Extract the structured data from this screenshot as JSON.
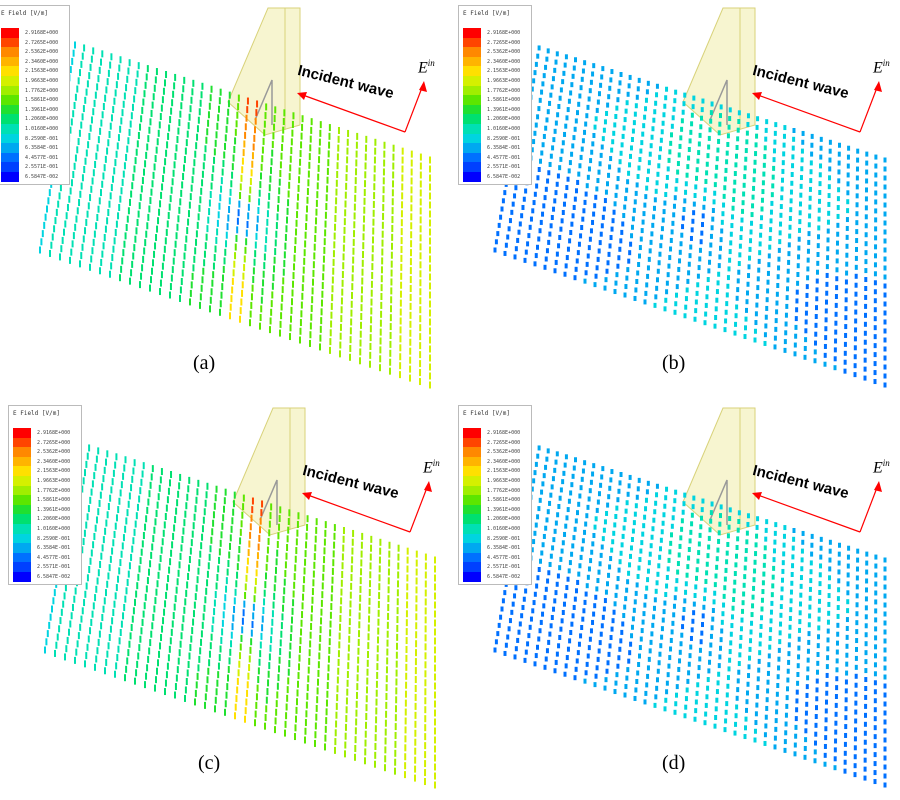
{
  "legend": {
    "title": "E Field [V/m]",
    "values": [
      "2.9168E+000",
      "2.7265E+000",
      "2.5362E+000",
      "2.3460E+000",
      "2.1563E+000",
      "1.9663E+000",
      "1.7762E+000",
      "1.5861E+000",
      "1.3961E+000",
      "1.2060E+000",
      "1.0160E+000",
      "8.2590E-001",
      "6.3584E-001",
      "4.4577E-001",
      "2.5571E-001",
      "6.5847E-002"
    ],
    "colors": [
      "#ff0000",
      "#ff4400",
      "#ff8800",
      "#ffb400",
      "#ffe000",
      "#d4f000",
      "#a0ee00",
      "#5ce600",
      "#20e030",
      "#00e070",
      "#00e0b4",
      "#00d4e0",
      "#00a8f0",
      "#0070ff",
      "#0040ff",
      "#0000ff"
    ]
  },
  "annotation": {
    "incident_wave": "Incident wave",
    "e_symbol": "E",
    "e_superscript": "in"
  },
  "panels": [
    {
      "id": "a",
      "caption": "(a)",
      "pattern": "strong"
    },
    {
      "id": "b",
      "caption": "(b)",
      "pattern": "weak"
    },
    {
      "id": "c",
      "caption": "(c)",
      "pattern": "strong"
    },
    {
      "id": "d",
      "caption": "(d)",
      "pattern": "weak"
    }
  ],
  "colors": {
    "arrow": "#ff0000",
    "slab": "#f2efb0",
    "slab_edge": "#d8d27a"
  }
}
